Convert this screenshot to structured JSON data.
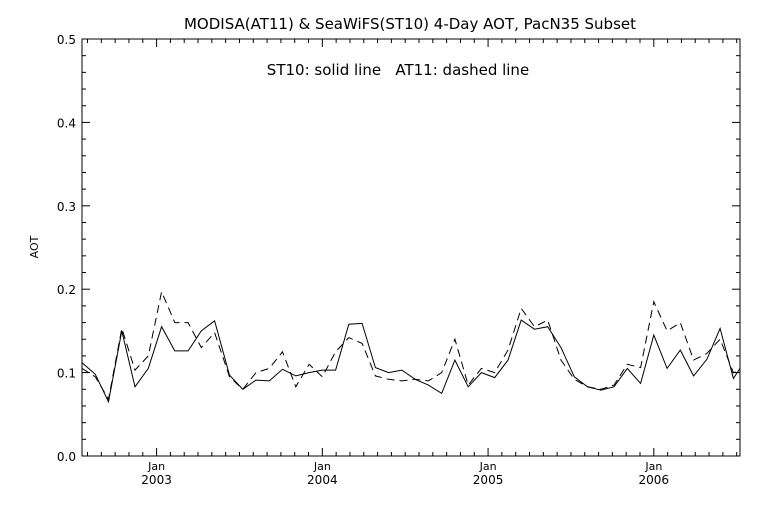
{
  "chart_data": {
    "type": "line",
    "title": "MODISA(AT11) & SeaWiFS(ST10) 4-Day AOT, PacN35 Subset",
    "annotation": "ST10: solid line   AT11: dashed line",
    "ylabel": "AOT",
    "xlabel": "",
    "ylim": [
      0.0,
      0.5
    ],
    "xlim": [
      2002.55,
      2006.52
    ],
    "y_ticks": [
      "0.0",
      "0.1",
      "0.2",
      "0.3",
      "0.4",
      "0.5"
    ],
    "x_ticks": [
      {
        "value": 2003.0,
        "month": "Jan",
        "year": "2003"
      },
      {
        "value": 2004.0,
        "month": "Jan",
        "year": "2004"
      },
      {
        "value": 2005.0,
        "month": "Jan",
        "year": "2005"
      },
      {
        "value": 2006.0,
        "month": "Jan",
        "year": "2006"
      }
    ],
    "grid": false,
    "series": [
      {
        "style": "solid",
        "x": [
          2002.55,
          2002.63,
          2002.71,
          2002.79,
          2002.87,
          2002.95,
          2003.03,
          2003.11,
          2003.19,
          2003.27,
          2003.35,
          2003.44,
          2003.52,
          2003.6,
          2003.68,
          2003.76,
          2003.84,
          2003.92,
          2004.0,
          2004.08,
          2004.16,
          2004.24,
          2004.32,
          2004.4,
          2004.48,
          2004.56,
          2004.64,
          2004.72,
          2004.8,
          2004.88,
          2004.96,
          2005.04,
          2005.12,
          2005.2,
          2005.28,
          2005.36,
          2005.44,
          2005.52,
          2005.6,
          2005.68,
          2005.76,
          2005.84,
          2005.92,
          2006.0,
          2006.08,
          2006.16,
          2006.24,
          2006.32,
          2006.4,
          2006.48,
          2006.52
        ],
        "y": [
          0.112,
          0.098,
          0.065,
          0.15,
          0.083,
          0.105,
          0.155,
          0.126,
          0.126,
          0.15,
          0.162,
          0.097,
          0.08,
          0.091,
          0.09,
          0.104,
          0.096,
          0.1,
          0.103,
          0.103,
          0.158,
          0.159,
          0.106,
          0.1,
          0.103,
          0.092,
          0.085,
          0.075,
          0.115,
          0.083,
          0.1,
          0.094,
          0.115,
          0.163,
          0.152,
          0.155,
          0.13,
          0.095,
          0.083,
          0.079,
          0.083,
          0.105,
          0.087,
          0.145,
          0.105,
          0.127,
          0.096,
          0.116,
          0.153,
          0.093,
          0.105
        ]
      },
      {
        "style": "dashed",
        "x": [
          2002.55,
          2002.63,
          2002.71,
          2002.79,
          2002.87,
          2002.95,
          2003.03,
          2003.11,
          2003.19,
          2003.27,
          2003.35,
          2003.44,
          2003.52,
          2003.6,
          2003.68,
          2003.76,
          2003.84,
          2003.92,
          2004.0,
          2004.08,
          2004.16,
          2004.24,
          2004.32,
          2004.4,
          2004.48,
          2004.56,
          2004.64,
          2004.72,
          2004.8,
          2004.88,
          2004.96,
          2005.04,
          2005.12,
          2005.2,
          2005.28,
          2005.36,
          2005.44,
          2005.52,
          2005.6,
          2005.68,
          2005.76,
          2005.84,
          2005.92,
          2006.0,
          2006.08,
          2006.16,
          2006.24,
          2006.32,
          2006.4,
          2006.48,
          2006.52
        ],
        "y": [
          0.105,
          0.095,
          0.068,
          0.153,
          0.103,
          0.12,
          0.197,
          0.16,
          0.16,
          0.13,
          0.148,
          0.095,
          0.08,
          0.1,
          0.105,
          0.125,
          0.083,
          0.11,
          0.095,
          0.125,
          0.142,
          0.135,
          0.096,
          0.092,
          0.09,
          0.092,
          0.09,
          0.1,
          0.14,
          0.085,
          0.105,
          0.1,
          0.127,
          0.177,
          0.155,
          0.163,
          0.115,
          0.092,
          0.083,
          0.08,
          0.085,
          0.11,
          0.106,
          0.185,
          0.15,
          0.16,
          0.115,
          0.123,
          0.14,
          0.1,
          0.102
        ]
      }
    ]
  }
}
